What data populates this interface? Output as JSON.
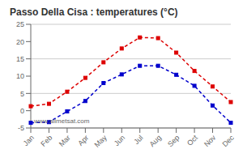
{
  "chart_data": {
    "type": "line",
    "title": "Passo Della Cisa : temperatures (°C)",
    "categories": [
      "Jan",
      "Feb",
      "Mar",
      "Apr",
      "May",
      "Jun",
      "Jul",
      "Aug",
      "Sep",
      "Oct",
      "Nov",
      "Dec"
    ],
    "series": [
      {
        "color": "#dd0000",
        "marker": "square",
        "line_style": "dashed",
        "values": [
          1.3,
          2.0,
          5.5,
          9.5,
          14.0,
          18.0,
          21.2,
          21.0,
          16.8,
          11.5,
          7.0,
          2.5
        ]
      },
      {
        "color": "#0000cc",
        "marker": "square",
        "line_style": "dashed",
        "values": [
          -3.5,
          -3.3,
          -0.2,
          2.8,
          8.0,
          10.5,
          13.0,
          13.0,
          10.4,
          7.2,
          1.5,
          -3.5
        ]
      }
    ],
    "ylim": [
      -5,
      25
    ],
    "yticks": [
      -5,
      0,
      5,
      10,
      15,
      20,
      25
    ],
    "grid": "y",
    "annotations": [
      "www.allmetsat.com"
    ]
  }
}
